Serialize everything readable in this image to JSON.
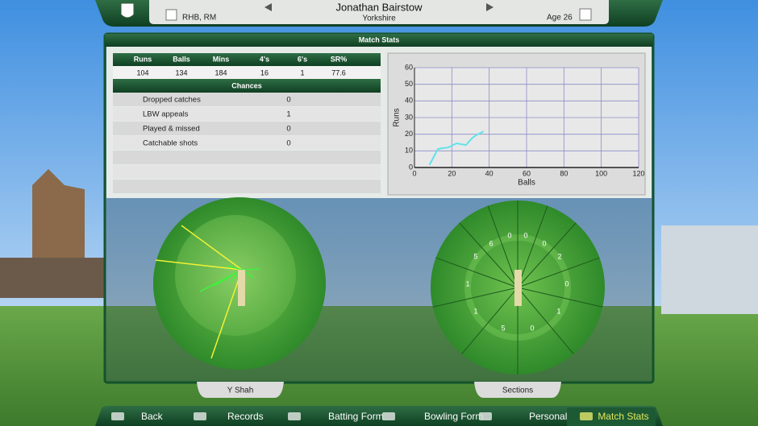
{
  "header": {
    "batting_style": "RHB, RM",
    "name": "Jonathan Bairstow",
    "team": "Yorkshire",
    "age": "Age 26"
  },
  "panel_title": "Match Stats",
  "stats": {
    "columns": [
      "Runs",
      "Balls",
      "Mins",
      "4's",
      "6's",
      "SR%"
    ],
    "values": [
      104,
      134,
      184,
      16,
      1,
      77.6
    ]
  },
  "chances": {
    "title": "Chances",
    "rows": [
      [
        "Dropped catches",
        0
      ],
      [
        "LBW appeals",
        1
      ],
      [
        "Played & missed",
        0
      ],
      [
        "Catchable shots",
        0
      ]
    ]
  },
  "worm_chart": {
    "type": "line",
    "x": [
      8,
      12.5,
      14.7,
      18,
      22.5,
      27.6,
      30.6,
      32.8,
      37
    ],
    "values": [
      1.5,
      11,
      11.6,
      12,
      14.5,
      13.5,
      17.4,
      19.3,
      21.7
    ],
    "xlim": [
      0,
      120
    ],
    "ylim": [
      0,
      60
    ],
    "xticks": [
      0,
      20,
      40,
      60,
      80,
      100,
      120
    ],
    "yticks": [
      0,
      10,
      20,
      30,
      40,
      50,
      60
    ],
    "xlabel": "Balls",
    "ylabel": "Runs",
    "color": "#5fe3ea",
    "grid": true
  },
  "sections": {
    "values": [
      0,
      0,
      0,
      2,
      0,
      1,
      0,
      5,
      1,
      1,
      5,
      6
    ]
  },
  "tabs": {
    "left": "Y Shah",
    "right": "Sections"
  },
  "nav": [
    "Back",
    "Records",
    "Batting Form",
    "Bowling Form",
    "Personal",
    "Match Stats"
  ]
}
